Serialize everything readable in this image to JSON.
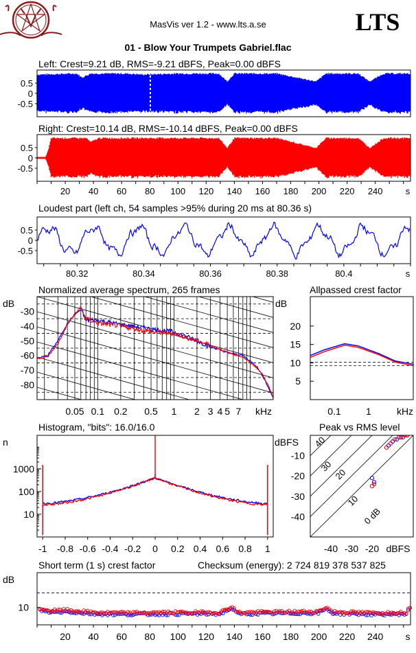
{
  "app": {
    "title": "MasVis ver 1.2 - www.lts.a.se",
    "brand": "LTS",
    "file_title": "01 - Blow Your Trumpets Gabriel.flac"
  },
  "colors": {
    "left": "#0000ff",
    "right": "#ff0000",
    "logo": "#8b1a1a"
  },
  "icon": "pentagram-goat-logo",
  "chart_data": [
    {
      "id": "left",
      "type": "line",
      "title": "Left: Crest=9.21 dB, RMS=-9.21 dBFS, Peak=0.00 dBFS",
      "yticks": [
        "0.5",
        "0",
        "-0.5"
      ],
      "ylim": [
        -1,
        1
      ],
      "xlim": [
        0,
        265
      ],
      "marker_x": 80.36,
      "envelope": [
        [
          0,
          0.95
        ],
        [
          28,
          1
        ],
        [
          32,
          0.8
        ],
        [
          38,
          1
        ],
        [
          63,
          1
        ],
        [
          75,
          0.95
        ],
        [
          100,
          1
        ],
        [
          129,
          1
        ],
        [
          135,
          0.6
        ],
        [
          140,
          1
        ],
        [
          170,
          1
        ],
        [
          198,
          0.6
        ],
        [
          205,
          1
        ],
        [
          228,
          1
        ],
        [
          236,
          0.6
        ],
        [
          246,
          1
        ],
        [
          265,
          1
        ]
      ]
    },
    {
      "id": "right",
      "type": "line",
      "title": "Right: Crest=10.14 dB, RMS=-10.14 dBFS, Peak=0.00 dBFS",
      "yticks": [
        "0.5",
        "0",
        "-0.5"
      ],
      "ylim": [
        -1,
        1
      ],
      "xlim": [
        0,
        265
      ],
      "xticks": [
        "20",
        "40",
        "60",
        "80",
        "100",
        "120",
        "140",
        "160",
        "180",
        "200",
        "220",
        "240"
      ],
      "xunit": "s",
      "envelope": [
        [
          0,
          0.05
        ],
        [
          6,
          0.05
        ],
        [
          8,
          0.4
        ],
        [
          10,
          1
        ],
        [
          35,
          1
        ],
        [
          38,
          0.8
        ],
        [
          44,
          1
        ],
        [
          76,
          1
        ],
        [
          100,
          1
        ],
        [
          129,
          1
        ],
        [
          135,
          0.5
        ],
        [
          140,
          1
        ],
        [
          170,
          1
        ],
        [
          198,
          0.5
        ],
        [
          205,
          1
        ],
        [
          228,
          1
        ],
        [
          236,
          0.5
        ],
        [
          246,
          1
        ],
        [
          265,
          1
        ]
      ]
    },
    {
      "id": "loudest",
      "type": "line",
      "title": "Loudest part (left  ch, 54 samples >95% during 20 ms at 80.36 s)",
      "yticks": [
        "0.5",
        "0",
        "-0.5"
      ],
      "ylim": [
        -1,
        1
      ],
      "xlim": [
        80.308,
        80.42
      ],
      "xticks": [
        "80.32",
        "80.34",
        "80.36",
        "80.38",
        "80.4"
      ],
      "xunit": "s",
      "period": 0.0135,
      "amplitude": 0.55
    },
    {
      "id": "spectrum",
      "type": "line",
      "title": "Normalized average spectrum, 265 frames",
      "ylabel": "dB",
      "yticks": [
        "-30",
        "-40",
        "-50",
        "-60",
        "-70",
        "-80"
      ],
      "ylim": [
        -90,
        -20
      ],
      "xticks": [
        "0.05",
        "0.1",
        "0.2",
        "0.5",
        "1",
        "2",
        "3",
        "4",
        "5",
        "7"
      ],
      "xunit": "kHz",
      "xlim": [
        0.016,
        20
      ],
      "xscale": "log",
      "series": [
        {
          "color": "left",
          "points": [
            [
              0.016,
              -62
            ],
            [
              0.022,
              -60
            ],
            [
              0.03,
              -50
            ],
            [
              0.04,
              -38
            ],
            [
              0.05,
              -32
            ],
            [
              0.06,
              -29
            ],
            [
              0.07,
              -36
            ],
            [
              0.1,
              -36
            ],
            [
              0.2,
              -39
            ],
            [
              0.5,
              -42
            ],
            [
              1,
              -44
            ],
            [
              2,
              -50
            ],
            [
              3,
              -54
            ],
            [
              5,
              -58
            ],
            [
              8,
              -60
            ],
            [
              12,
              -67
            ],
            [
              15,
              -75
            ],
            [
              20,
              -89
            ]
          ]
        },
        {
          "color": "right",
          "points": [
            [
              0.016,
              -62
            ],
            [
              0.022,
              -61
            ],
            [
              0.03,
              -52
            ],
            [
              0.04,
              -39
            ],
            [
              0.05,
              -32
            ],
            [
              0.06,
              -27
            ],
            [
              0.07,
              -35
            ],
            [
              0.1,
              -38
            ],
            [
              0.2,
              -40
            ],
            [
              0.5,
              -44
            ],
            [
              1,
              -45
            ],
            [
              2,
              -50
            ],
            [
              3,
              -53
            ],
            [
              5,
              -58
            ],
            [
              8,
              -61
            ],
            [
              12,
              -68
            ],
            [
              15,
              -74
            ],
            [
              20,
              -88
            ]
          ]
        }
      ]
    },
    {
      "id": "allpass",
      "type": "line",
      "title": "Allpassed crest factor",
      "ylabel": "dB",
      "yticks": [
        "20",
        "15",
        "10",
        "5"
      ],
      "ylim": [
        0,
        28
      ],
      "xticks": [
        "0.1",
        "1",
        "kHz"
      ],
      "xscale": "log",
      "xlim": [
        0.02,
        20
      ],
      "ref_levels": [
        9.21,
        10.14
      ],
      "series": [
        {
          "color": "left",
          "points": [
            [
              0.02,
              12
            ],
            [
              0.05,
              13.5
            ],
            [
              0.2,
              15.2
            ],
            [
              0.5,
              14.6
            ],
            [
              2,
              12.5
            ],
            [
              6,
              10.5
            ],
            [
              20,
              9.6
            ]
          ]
        },
        {
          "color": "right",
          "points": [
            [
              0.02,
              11.5
            ],
            [
              0.05,
              13
            ],
            [
              0.2,
              14.8
            ],
            [
              0.5,
              14.2
            ],
            [
              2,
              12.2
            ],
            [
              6,
              10.2
            ],
            [
              20,
              9.2
            ]
          ]
        }
      ]
    },
    {
      "id": "histogram",
      "type": "line",
      "title": "Histogram, \"bits\": 16.0/16.0",
      "ylabel": "n",
      "yticks": [
        "1000",
        "100",
        "10"
      ],
      "ylim": [
        1,
        30000
      ],
      "yscale": "log",
      "xticks": [
        "-1",
        "-0.8",
        "-0.6",
        "-0.4",
        "-0.2",
        "0",
        "0.2",
        "0.4",
        "0.6",
        "0.8",
        "1"
      ],
      "xlim": [
        -1.05,
        1.05
      ]
    },
    {
      "id": "peakrms",
      "type": "scatter",
      "title": "Peak vs RMS level",
      "ylabel": "dBFS",
      "yticks": [
        "-10",
        "-20",
        "-30",
        "-40"
      ],
      "ylim": [
        -50,
        0
      ],
      "xticks": [
        "-40",
        "-30",
        "-20",
        "dBFS"
      ],
      "xlim": [
        -50,
        0
      ],
      "diag_labels": [
        "40",
        "30",
        "20",
        "10",
        "0 dB"
      ],
      "series": [
        {
          "color": "left",
          "points": [
            [
              -20,
              -21
            ],
            [
              -19,
              -23
            ],
            [
              -12,
              -5
            ],
            [
              -10,
              -3
            ],
            [
              -8,
              -2
            ],
            [
              -6,
              -1
            ],
            [
              -5,
              -1
            ],
            [
              -4,
              0
            ],
            [
              -3,
              0
            ]
          ]
        },
        {
          "color": "right",
          "points": [
            [
              -20,
              -25
            ],
            [
              -19,
              -24
            ],
            [
              -13,
              -6
            ],
            [
              -11,
              -4
            ],
            [
              -9,
              -2
            ],
            [
              -7,
              -1
            ],
            [
              -5,
              -1
            ],
            [
              -4,
              0
            ],
            [
              -3,
              0
            ]
          ]
        }
      ]
    },
    {
      "id": "shortcrest",
      "type": "scatter",
      "title": "Short term (1 s) crest factor",
      "checksum": "Checksum (energy):  2 724 819 378 537 825",
      "ylabel": "dB",
      "yticks": [
        "10"
      ],
      "xticks": [
        "20",
        "40",
        "60",
        "80",
        "100",
        "120",
        "140",
        "160",
        "180",
        "200",
        "220",
        "240"
      ],
      "xunit": "s",
      "xlim": [
        0,
        265
      ],
      "ylim": [
        4,
        22
      ],
      "ref_level": 15
    }
  ]
}
